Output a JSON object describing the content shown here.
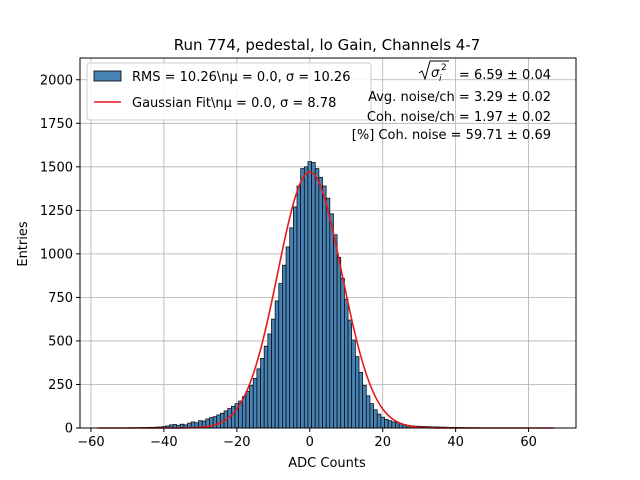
{
  "chart_data": {
    "type": "bar",
    "title": "Run 774, pedestal, lo Gain, Channels 4-7",
    "xlabel": "ADC Counts",
    "ylabel": "Entries",
    "xlim": [
      -63,
      73
    ],
    "ylim": [
      0,
      2125
    ],
    "xticks": [
      -60,
      -40,
      -20,
      0,
      20,
      40,
      60
    ],
    "yticks": [
      0,
      250,
      500,
      750,
      1000,
      1250,
      1500,
      1750,
      2000
    ],
    "grid": true,
    "legend_position": "top-left",
    "bin_width": 1,
    "histogram": {
      "name": "RMS = 10.26\\nμ = 0.0, σ = 10.26",
      "color": "#4682b4",
      "edge_color": "#000000",
      "bins": [
        [
          -58,
          1
        ],
        [
          -57,
          1
        ],
        [
          -56,
          1
        ],
        [
          -55,
          1
        ],
        [
          -54,
          1
        ],
        [
          -53,
          1
        ],
        [
          -52,
          1
        ],
        [
          -51,
          1
        ],
        [
          -50,
          1
        ],
        [
          -49,
          2
        ],
        [
          -48,
          2
        ],
        [
          -47,
          2
        ],
        [
          -46,
          3
        ],
        [
          -45,
          3
        ],
        [
          -44,
          4
        ],
        [
          -43,
          4
        ],
        [
          -42,
          5
        ],
        [
          -41,
          6
        ],
        [
          -40,
          8
        ],
        [
          -39,
          12
        ],
        [
          -38,
          18
        ],
        [
          -37,
          20
        ],
        [
          -36,
          16
        ],
        [
          -35,
          22
        ],
        [
          -34,
          18
        ],
        [
          -33,
          28
        ],
        [
          -32,
          35
        ],
        [
          -31,
          30
        ],
        [
          -30,
          42
        ],
        [
          -29,
          40
        ],
        [
          -28,
          52
        ],
        [
          -27,
          60
        ],
        [
          -26,
          65
        ],
        [
          -25,
          75
        ],
        [
          -24,
          85
        ],
        [
          -23,
          98
        ],
        [
          -22,
          112
        ],
        [
          -21,
          125
        ],
        [
          -20,
          140
        ],
        [
          -19,
          155
        ],
        [
          -18,
          180
        ],
        [
          -17,
          210
        ],
        [
          -16,
          245
        ],
        [
          -15,
          285
        ],
        [
          -14,
          340
        ],
        [
          -13,
          400
        ],
        [
          -12,
          470
        ],
        [
          -11,
          540
        ],
        [
          -10,
          625
        ],
        [
          -9,
          730
        ],
        [
          -8,
          830
        ],
        [
          -7,
          935
        ],
        [
          -6,
          1040
        ],
        [
          -5,
          1150
        ],
        [
          -4,
          1270
        ],
        [
          -3,
          1390
        ],
        [
          -2,
          1490
        ],
        [
          -1,
          1500
        ],
        [
          0,
          1530
        ],
        [
          1,
          1525
        ],
        [
          2,
          1490
        ],
        [
          3,
          1440
        ],
        [
          4,
          1390
        ],
        [
          5,
          1320
        ],
        [
          6,
          1230
        ],
        [
          7,
          1110
        ],
        [
          8,
          980
        ],
        [
          9,
          860
        ],
        [
          10,
          740
        ],
        [
          11,
          620
        ],
        [
          12,
          505
        ],
        [
          13,
          410
        ],
        [
          14,
          320
        ],
        [
          15,
          245
        ],
        [
          16,
          185
        ],
        [
          17,
          140
        ],
        [
          18,
          105
        ],
        [
          19,
          80
        ],
        [
          20,
          62
        ],
        [
          21,
          50
        ],
        [
          22,
          42
        ],
        [
          23,
          35
        ],
        [
          24,
          30
        ],
        [
          25,
          25
        ],
        [
          26,
          20
        ],
        [
          27,
          16
        ],
        [
          28,
          13
        ],
        [
          29,
          11
        ],
        [
          30,
          10
        ],
        [
          31,
          9
        ],
        [
          32,
          8
        ],
        [
          33,
          7
        ],
        [
          34,
          6
        ],
        [
          35,
          6
        ],
        [
          36,
          5
        ],
        [
          37,
          5
        ],
        [
          38,
          4
        ],
        [
          39,
          4
        ],
        [
          40,
          3
        ],
        [
          41,
          3
        ],
        [
          42,
          3
        ],
        [
          43,
          2
        ],
        [
          44,
          2
        ],
        [
          45,
          2
        ],
        [
          46,
          2
        ],
        [
          47,
          1
        ],
        [
          48,
          1
        ],
        [
          49,
          1
        ],
        [
          50,
          1
        ],
        [
          51,
          1
        ],
        [
          52,
          1
        ],
        [
          53,
          1
        ],
        [
          54,
          1
        ],
        [
          55,
          1
        ],
        [
          56,
          1
        ],
        [
          57,
          1
        ],
        [
          58,
          1
        ],
        [
          59,
          1
        ],
        [
          60,
          1
        ],
        [
          61,
          1
        ],
        [
          62,
          1
        ],
        [
          63,
          1
        ],
        [
          64,
          1
        ],
        [
          65,
          1
        ],
        [
          66,
          1
        ]
      ]
    },
    "fit": {
      "name": "Gaussian Fit\\nμ = 0.0, σ = 8.78",
      "color": "#e41a1c",
      "mu": 0.0,
      "sigma": 8.78,
      "amplitude": 1470,
      "x_range": [
        -58,
        67
      ]
    },
    "annotations": {
      "total_noise_value": "= 6.59 ± 0.04",
      "avg_noise": "Avg. noise/ch = 3.29 ± 0.02",
      "coh_noise": "Coh. noise/ch = 1.97 ± 0.02",
      "coh_percent": "[%] Coh. noise = 59.71 ± 0.69"
    }
  }
}
